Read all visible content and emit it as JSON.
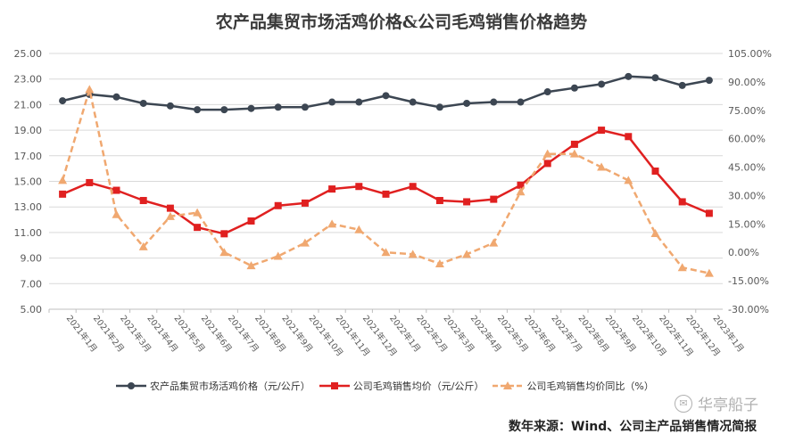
{
  "header": {
    "title": "农产品集贸市场活鸡价格&公司毛鸡销售价格趋势"
  },
  "footer": {
    "source": "数年来源：Wind、公司主产品销售情况简报",
    "watermark": "华亭船子"
  },
  "colors": {
    "market": "#3c4652",
    "company": "#e02020",
    "yoy": "#f0a870",
    "grid": "#d9d9d9",
    "axis_text": "#595959"
  },
  "chart_data": {
    "type": "line",
    "title": "农产品集贸市场活鸡价格&公司毛鸡销售价格趋势",
    "categories": [
      "2021年1月",
      "2021年2月",
      "2021年3月",
      "2021年4月",
      "2021年5月",
      "2021年6月",
      "2021年7月",
      "2021年8月",
      "2021年9月",
      "2021年10月",
      "2021年11月",
      "2021年12月",
      "2022年1月",
      "2022年2月",
      "2022年3月",
      "2022年4月",
      "2022年5月",
      "2022年6月",
      "2022年7月",
      "2022年8月",
      "2022年9月",
      "2022年10月",
      "2022年11月",
      "2022年12月",
      "2023年1月"
    ],
    "y_left": {
      "min": 5,
      "max": 25,
      "step": 2,
      "ticks": [
        "5.00",
        "7.00",
        "9.00",
        "11.00",
        "13.00",
        "15.00",
        "17.00",
        "19.00",
        "21.00",
        "23.00",
        "25.00"
      ]
    },
    "y_right": {
      "min": -30,
      "max": 105,
      "step": 15,
      "ticks": [
        "-30.00%",
        "-15.00%",
        "0.00%",
        "15.00%",
        "30.00%",
        "45.00%",
        "60.00%",
        "75.00%",
        "90.00%",
        "105.00%"
      ]
    },
    "series": [
      {
        "name": "农产品集贸市场活鸡价格（元/公斤）",
        "axis": "left",
        "style": "circle",
        "values": [
          21.3,
          21.8,
          21.6,
          21.1,
          20.9,
          20.6,
          20.6,
          20.7,
          20.8,
          20.8,
          21.2,
          21.2,
          21.7,
          21.2,
          20.8,
          21.1,
          21.2,
          21.2,
          22.0,
          22.3,
          22.6,
          23.2,
          23.1,
          22.5,
          22.9
        ]
      },
      {
        "name": "公司毛鸡销售均价（元/公斤）",
        "axis": "left",
        "style": "square",
        "values": [
          14.0,
          14.9,
          14.3,
          13.5,
          12.9,
          11.4,
          10.9,
          11.9,
          13.1,
          13.3,
          14.4,
          14.6,
          14.0,
          14.6,
          13.5,
          13.4,
          13.6,
          14.7,
          16.4,
          17.9,
          19.0,
          18.5,
          15.8,
          13.4,
          12.5
        ]
      },
      {
        "name": "公司毛鸡销售均价同比（%）",
        "axis": "right",
        "style": "triangle-dashed",
        "values": [
          38,
          86,
          20,
          3,
          19,
          21,
          0,
          -7,
          -2,
          5,
          15,
          12,
          0,
          -1,
          -6,
          -1,
          5,
          32,
          52,
          52,
          45,
          38,
          10,
          -8,
          -11
        ]
      }
    ]
  }
}
